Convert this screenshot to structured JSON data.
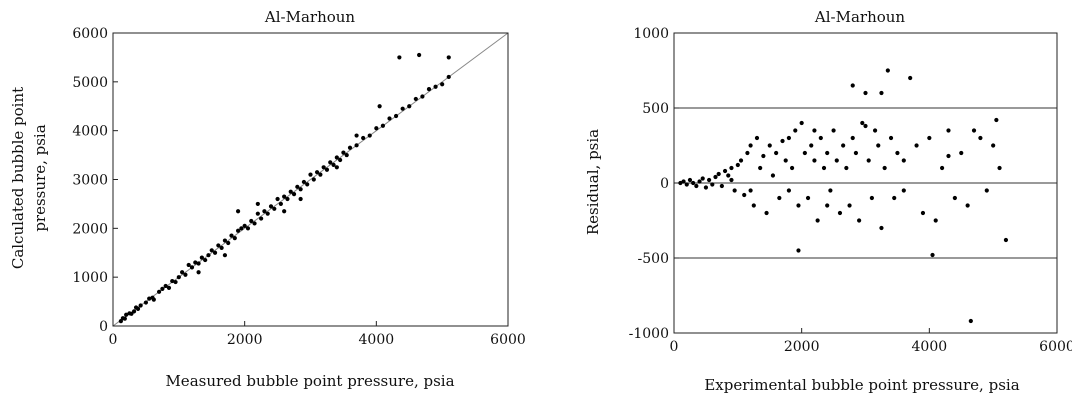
{
  "chart_data": [
    {
      "type": "scatter",
      "title": "Al-Marhoun",
      "xlabel": "Measured bubble point pressure, psia",
      "ylabel_lines": [
        "Calculated bubble point",
        "pressure, psia"
      ],
      "xlim": [
        0,
        6000
      ],
      "ylim": [
        0,
        6000
      ],
      "xticks": [
        0,
        2000,
        4000,
        6000
      ],
      "yticks": [
        0,
        1000,
        2000,
        3000,
        4000,
        5000,
        6000
      ],
      "reference_line": {
        "type": "unit-slope",
        "from": [
          0,
          0
        ],
        "to": [
          6000,
          6000
        ]
      },
      "grid": false,
      "series": [
        {
          "values_xy": [
            [
              120,
              100
            ],
            [
              150,
              160
            ],
            [
              180,
              150
            ],
            [
              200,
              230
            ],
            [
              250,
              260
            ],
            [
              280,
              250
            ],
            [
              320,
              300
            ],
            [
              350,
              380
            ],
            [
              380,
              350
            ],
            [
              420,
              420
            ],
            [
              500,
              480
            ],
            [
              550,
              560
            ],
            [
              600,
              580
            ],
            [
              620,
              540
            ],
            [
              700,
              700
            ],
            [
              750,
              760
            ],
            [
              800,
              820
            ],
            [
              850,
              780
            ],
            [
              900,
              920
            ],
            [
              950,
              900
            ],
            [
              1000,
              1000
            ],
            [
              1050,
              1100
            ],
            [
              1100,
              1050
            ],
            [
              1150,
              1250
            ],
            [
              1200,
              1200
            ],
            [
              1250,
              1300
            ],
            [
              1300,
              1280
            ],
            [
              1350,
              1400
            ],
            [
              1400,
              1350
            ],
            [
              1450,
              1450
            ],
            [
              1500,
              1550
            ],
            [
              1550,
              1500
            ],
            [
              1600,
              1650
            ],
            [
              1650,
              1600
            ],
            [
              1700,
              1750
            ],
            [
              1750,
              1700
            ],
            [
              1800,
              1850
            ],
            [
              1850,
              1800
            ],
            [
              1900,
              1950
            ],
            [
              1950,
              2000
            ],
            [
              2000,
              2050
            ],
            [
              2050,
              2000
            ],
            [
              2100,
              2150
            ],
            [
              2150,
              2100
            ],
            [
              2200,
              2300
            ],
            [
              2250,
              2200
            ],
            [
              2300,
              2350
            ],
            [
              2350,
              2300
            ],
            [
              2400,
              2450
            ],
            [
              2450,
              2400
            ],
            [
              2500,
              2600
            ],
            [
              2550,
              2500
            ],
            [
              2600,
              2650
            ],
            [
              2650,
              2600
            ],
            [
              2700,
              2750
            ],
            [
              2750,
              2700
            ],
            [
              2800,
              2850
            ],
            [
              2850,
              2800
            ],
            [
              2900,
              2950
            ],
            [
              2950,
              2900
            ],
            [
              3000,
              3100
            ],
            [
              3050,
              3000
            ],
            [
              3100,
              3150
            ],
            [
              3150,
              3100
            ],
            [
              3200,
              3250
            ],
            [
              3250,
              3200
            ],
            [
              3300,
              3350
            ],
            [
              3350,
              3300
            ],
            [
              3400,
              3450
            ],
            [
              3450,
              3400
            ],
            [
              3500,
              3550
            ],
            [
              3550,
              3500
            ],
            [
              3600,
              3650
            ],
            [
              3700,
              3700
            ],
            [
              3800,
              3850
            ],
            [
              3900,
              3900
            ],
            [
              4000,
              4050
            ],
            [
              4100,
              4100
            ],
            [
              4200,
              4250
            ],
            [
              4300,
              4300
            ],
            [
              4400,
              4450
            ],
            [
              4500,
              4500
            ],
            [
              4600,
              4650
            ],
            [
              4700,
              4700
            ],
            [
              4800,
              4850
            ],
            [
              4900,
              4900
            ],
            [
              5000,
              4950
            ],
            [
              5100,
              5100
            ],
            [
              5100,
              5500
            ],
            [
              4350,
              5500
            ],
            [
              4650,
              5550
            ],
            [
              4050,
              4500
            ],
            [
              1900,
              2350
            ],
            [
              2600,
              2350
            ],
            [
              1700,
              1450
            ],
            [
              2200,
              2500
            ],
            [
              3400,
              3250
            ],
            [
              2850,
              2600
            ],
            [
              1300,
              1100
            ],
            [
              3700,
              3900
            ]
          ]
        }
      ]
    },
    {
      "type": "scatter",
      "title": "Al-Marhoun",
      "xlabel": "Experimental bubble point pressure, psia",
      "ylabel": "Residual, psia",
      "xlim": [
        0,
        6000
      ],
      "ylim": [
        -1000,
        1000
      ],
      "xticks": [
        0,
        2000,
        4000,
        6000
      ],
      "yticks": [
        -1000,
        -500,
        0,
        500,
        1000
      ],
      "ytick_labels": [
        "-1000",
        "-500",
        "0",
        "500",
        "1000"
      ],
      "horizontal_lines": [
        500,
        0,
        -500
      ],
      "grid": false,
      "series": [
        {
          "values_xy": [
            [
              100,
              0
            ],
            [
              150,
              10
            ],
            [
              200,
              -10
            ],
            [
              250,
              20
            ],
            [
              300,
              0
            ],
            [
              350,
              -20
            ],
            [
              400,
              10
            ],
            [
              450,
              30
            ],
            [
              500,
              -30
            ],
            [
              550,
              20
            ],
            [
              600,
              -10
            ],
            [
              650,
              40
            ],
            [
              700,
              60
            ],
            [
              750,
              -20
            ],
            [
              800,
              80
            ],
            [
              850,
              50
            ],
            [
              900,
              100
            ],
            [
              950,
              -50
            ],
            [
              1000,
              120
            ],
            [
              1050,
              150
            ],
            [
              1100,
              -80
            ],
            [
              1150,
              200
            ],
            [
              1200,
              250
            ],
            [
              1250,
              -150
            ],
            [
              1300,
              300
            ],
            [
              1350,
              100
            ],
            [
              1400,
              180
            ],
            [
              1450,
              -200
            ],
            [
              1500,
              250
            ],
            [
              1550,
              50
            ],
            [
              1600,
              200
            ],
            [
              1650,
              -100
            ],
            [
              1700,
              280
            ],
            [
              1750,
              150
            ],
            [
              1800,
              -50
            ],
            [
              1850,
              100
            ],
            [
              1900,
              350
            ],
            [
              1950,
              -150
            ],
            [
              2000,
              400
            ],
            [
              2050,
              200
            ],
            [
              2100,
              -100
            ],
            [
              2150,
              250
            ],
            [
              2200,
              150
            ],
            [
              2250,
              -250
            ],
            [
              2300,
              300
            ],
            [
              2350,
              100
            ],
            [
              2400,
              200
            ],
            [
              2450,
              -50
            ],
            [
              2500,
              350
            ],
            [
              2550,
              150
            ],
            [
              2600,
              -200
            ],
            [
              2650,
              250
            ],
            [
              2700,
              100
            ],
            [
              2750,
              -150
            ],
            [
              2800,
              300
            ],
            [
              2850,
              200
            ],
            [
              2900,
              -250
            ],
            [
              2950,
              400
            ],
            [
              3000,
              600
            ],
            [
              3050,
              150
            ],
            [
              3100,
              -100
            ],
            [
              3150,
              350
            ],
            [
              3200,
              250
            ],
            [
              3250,
              -300
            ],
            [
              3300,
              100
            ],
            [
              3350,
              750
            ],
            [
              3400,
              300
            ],
            [
              3450,
              -100
            ],
            [
              3500,
              200
            ],
            [
              3600,
              150
            ],
            [
              3700,
              700
            ],
            [
              3800,
              250
            ],
            [
              3900,
              -200
            ],
            [
              4000,
              300
            ],
            [
              4100,
              -250
            ],
            [
              4200,
              100
            ],
            [
              4300,
              350
            ],
            [
              4400,
              -100
            ],
            [
              4500,
              200
            ],
            [
              4600,
              -150
            ],
            [
              4700,
              350
            ],
            [
              4800,
              300
            ],
            [
              4900,
              -50
            ],
            [
              5000,
              250
            ],
            [
              5100,
              100
            ],
            [
              5200,
              -380
            ],
            [
              4650,
              -920
            ],
            [
              4050,
              -480
            ],
            [
              1950,
              -450
            ],
            [
              3250,
              600
            ],
            [
              2800,
              650
            ],
            [
              3600,
              -50
            ],
            [
              2400,
              -150
            ],
            [
              1200,
              -50
            ],
            [
              900,
              20
            ],
            [
              4300,
              180
            ],
            [
              3000,
              380
            ],
            [
              2200,
              350
            ],
            [
              1800,
              300
            ],
            [
              5050,
              420
            ]
          ]
        }
      ]
    }
  ]
}
